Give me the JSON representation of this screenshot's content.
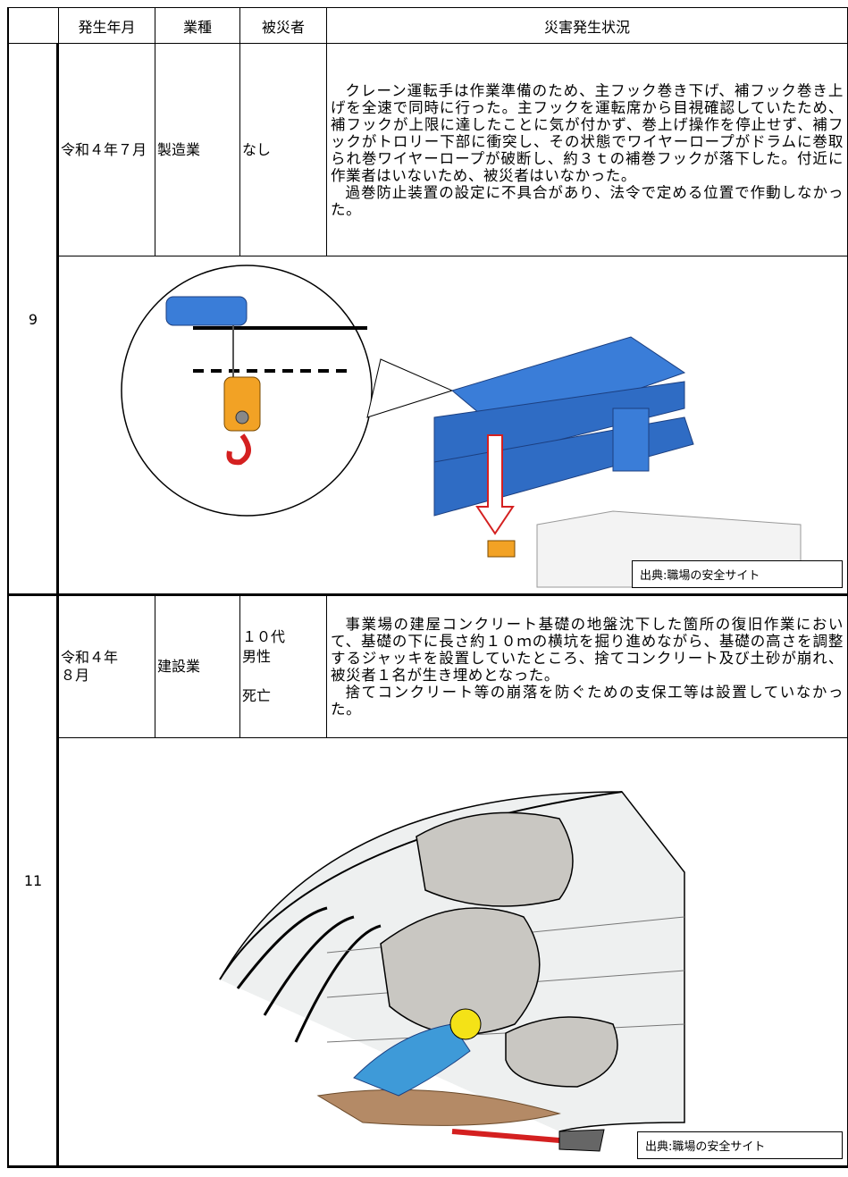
{
  "table": {
    "headers": [
      "発生年月",
      "業種",
      "被災者",
      "災害発生状況"
    ],
    "rows": [
      {
        "number": "9",
        "date": "令和４年７月",
        "industry": "製造業",
        "victim": [
          "なし"
        ],
        "description": [
          "クレーン運転手は作業準備のため、主フック巻き下げ、補フック巻き上げを全速で同時に行った。主フックを運転席から目視確認していたため、補フックが上限に達したことに気が付かず、巻上げ操作を停止せず、補フックがトロリー下部に衝突し、その状態でワイヤーロープがドラムに巻取られ巻ワイヤーロープが破断し、約３ｔの補巻フックが落下した。付近に作業者はいないため、被災者はいなかった。",
          "過巻防止装置の設定に不具合があり、法令で定める位置で作動しなかった。"
        ],
        "source": "出典:職場の安全サイト"
      },
      {
        "number": "11",
        "date": [
          "令和４年",
          "８月"
        ],
        "industry": "建設業",
        "victim": [
          "１０代",
          "男性",
          "死亡"
        ],
        "description": [
          "事業場の建屋コンクリート基礎の地盤沈下した箇所の復旧作業において、基礎の下に長さ約１０ｍの横坑を掘り進めながら、基礎の高さを調整するジャッキを設置していたところ、捨てコンクリート及び土砂が崩れ、被災者１名が生き埋めとなった。",
          "捨てコンクリート等の崩落を防ぐための支保工等は設置していなかった。"
        ],
        "source": "出典:職場の安全サイト"
      }
    ]
  }
}
